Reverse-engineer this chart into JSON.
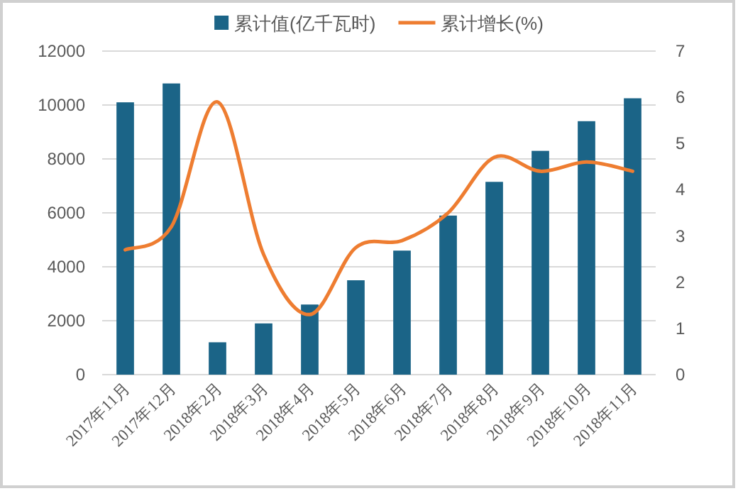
{
  "chart_data": {
    "type": "bar",
    "categories": [
      "2017年11月",
      "2017年12月",
      "2018年2月",
      "2018年3月",
      "2018年4月",
      "2018年5月",
      "2018年6月",
      "2018年7月",
      "2018年8月",
      "2018年9月",
      "2018年10月",
      "2018年11月"
    ],
    "series": [
      {
        "name": "累计值(亿千瓦时)",
        "color": "#1b6487",
        "values": [
          10100,
          10800,
          1200,
          1900,
          2600,
          3500,
          4600,
          5900,
          7150,
          8300,
          9400,
          10250
        ]
      },
      {
        "name": "累计增长(%)",
        "type": "line",
        "axis": "y2",
        "color": "#ee7d31",
        "values": [
          2.7,
          3.2,
          5.9,
          2.6,
          1.3,
          2.75,
          2.9,
          3.5,
          4.7,
          4.4,
          4.6,
          4.4
        ]
      }
    ],
    "ylim": [
      0,
      12000
    ],
    "yticks": [
      0,
      2000,
      4000,
      6000,
      8000,
      10000,
      12000
    ],
    "y2lim": [
      0,
      7
    ],
    "y2ticks": [
      0,
      1,
      2,
      3,
      4,
      5,
      6,
      7
    ],
    "grid": "y",
    "legend": "top"
  }
}
